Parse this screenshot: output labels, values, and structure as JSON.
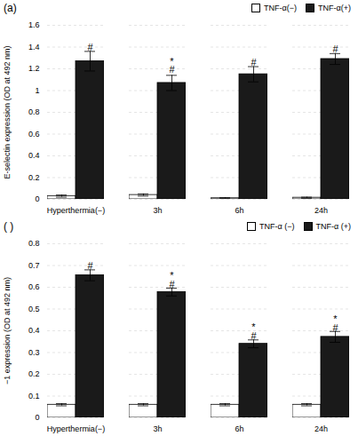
{
  "chart_data": [
    {
      "type": "bar",
      "title": "(a)",
      "ylabel": "E-selectin expression (OD at 492 nm)",
      "categories": [
        "Hyperthermia(−)",
        "3h",
        "6h",
        "24h"
      ],
      "series": [
        {
          "name": "TNF-α(−)",
          "color": "#ffffff",
          "values": [
            0.03,
            0.04,
            0.01,
            0.015
          ],
          "errors": [
            0.01,
            0.01,
            0.005,
            0.005
          ]
        },
        {
          "name": "TNF-α(+)",
          "color": "#1a1a1a",
          "values": [
            1.27,
            1.07,
            1.15,
            1.29
          ],
          "errors": [
            0.09,
            0.07,
            0.07,
            0.05
          ]
        }
      ],
      "annotations": [
        {
          "category": "Hyperthermia(−)",
          "series": "TNF-α(+)",
          "y": 1.37,
          "text": "#"
        },
        {
          "category": "3h",
          "series": "TNF-α(+)",
          "y": 1.16,
          "text": "*\n#"
        },
        {
          "category": "6h",
          "series": "TNF-α(+)",
          "y": 1.23,
          "text": "#"
        },
        {
          "category": "24h",
          "series": "TNF-α(+)",
          "y": 1.35,
          "text": "#"
        }
      ],
      "ylim": [
        0,
        1.6
      ],
      "yticks": [
        0,
        0.2,
        0.4,
        0.6,
        0.8,
        1,
        1.2,
        1.4,
        1.6
      ],
      "grid": true,
      "legend": "upper right"
    },
    {
      "type": "bar",
      "title": "( )",
      "ylabel": "−1 expression (OD at 492 nm)",
      "categories": [
        "Hyperthermia(−)",
        "3h",
        "6h",
        "24h"
      ],
      "series": [
        {
          "name": "TNF-α (−)",
          "color": "#ffffff",
          "values": [
            0.06,
            0.06,
            0.06,
            0.06
          ],
          "errors": [
            0.005,
            0.005,
            0.005,
            0.005
          ]
        },
        {
          "name": "TNF-α (+)",
          "color": "#1a1a1a",
          "values": [
            0.655,
            0.578,
            0.34,
            0.372
          ],
          "errors": [
            0.025,
            0.018,
            0.018,
            0.025
          ]
        }
      ],
      "annotations": [
        {
          "category": "Hyperthermia(−)",
          "series": "TNF-α (+)",
          "y": 0.685,
          "text": "#"
        },
        {
          "category": "3h",
          "series": "TNF-α (+)",
          "y": 0.6,
          "text": "*\n#"
        },
        {
          "category": "6h",
          "series": "TNF-α (+)",
          "y": 0.363,
          "text": "*\n#"
        },
        {
          "category": "24h",
          "series": "TNF-α (+)",
          "y": 0.4,
          "text": "*\n#"
        }
      ],
      "ylim": [
        0,
        0.8
      ],
      "yticks": [
        0,
        0.1,
        0.2,
        0.3,
        0.4,
        0.5,
        0.6,
        0.7,
        0.8
      ],
      "grid": true,
      "legend": "upper right"
    }
  ]
}
